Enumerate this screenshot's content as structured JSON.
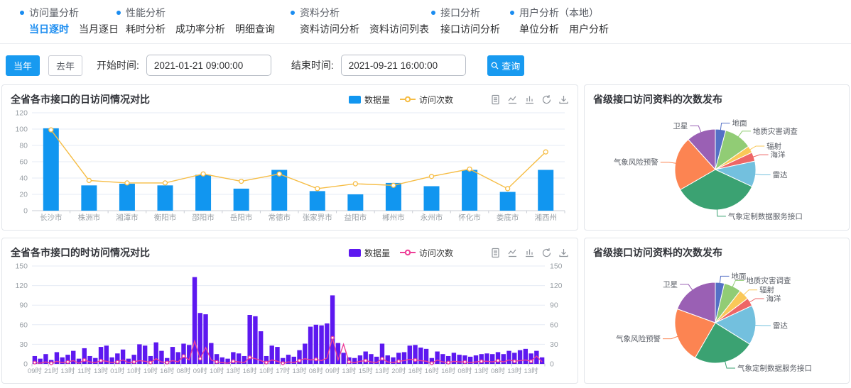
{
  "nav": {
    "bullet_color": "#1a8cf0",
    "active_color": "#1a8cf0",
    "groups": [
      {
        "title": "访问量分析",
        "items": [
          {
            "label": "当日逐时",
            "active": true
          },
          {
            "label": "当月逐日",
            "active": false
          }
        ]
      },
      {
        "title": "性能分析",
        "items": [
          {
            "label": "耗时分析",
            "active": false
          },
          {
            "label": "成功率分析",
            "active": false
          },
          {
            "label": "明细查询",
            "active": false
          }
        ]
      },
      {
        "title": "资料分析",
        "items": [
          {
            "label": "资料访问分析",
            "active": false
          },
          {
            "label": "资料访问列表",
            "active": false
          }
        ]
      },
      {
        "title": "接口分析",
        "items": [
          {
            "label": "接口访问分析",
            "active": false
          }
        ]
      },
      {
        "title": "用户分析（本地）",
        "items": [
          {
            "label": "单位分析",
            "active": false
          },
          {
            "label": "用户分析",
            "active": false
          }
        ]
      }
    ]
  },
  "filters": {
    "this_year_label": "当年",
    "last_year_label": "去年",
    "start_label": "开始时间:",
    "start_value": "2021-01-21 09:00:00",
    "end_label": "结束时间:",
    "end_value": "2021-09-21 16:00:00",
    "query_label": "查询",
    "accent_color": "#189af0"
  },
  "toolbox_icons": [
    "data-view",
    "switch-to-line",
    "switch-to-bar",
    "restore",
    "save-as-image"
  ],
  "chart_data": [
    {
      "id": "daily",
      "type": "bar",
      "title": "全省各市接口的日访问情况对比",
      "legend": [
        {
          "label": "数据量",
          "kind": "bar",
          "color": "#1196f0"
        },
        {
          "label": "访问次数",
          "kind": "line",
          "color": "#f6bd45"
        }
      ],
      "categories": [
        "长沙市",
        "株洲市",
        "湘潭市",
        "衡阳市",
        "邵阳市",
        "岳阳市",
        "常德市",
        "张家界市",
        "益阳市",
        "郴州市",
        "永州市",
        "怀化市",
        "娄底市",
        "湘西州"
      ],
      "series": [
        {
          "name": "数据量",
          "type": "bar",
          "color": "#1196f0",
          "values": [
            101,
            31,
            33,
            31,
            44,
            27,
            50,
            24,
            20,
            34,
            30,
            50,
            23,
            50
          ]
        },
        {
          "name": "访问次数",
          "type": "line",
          "color": "#f6bd45",
          "values": [
            99,
            37,
            34,
            34,
            45,
            36,
            45,
            27,
            33,
            31,
            42,
            51,
            27,
            72
          ]
        }
      ],
      "xlabel": "",
      "ylabel": "",
      "ylim": [
        0,
        120
      ],
      "yticks": [
        0,
        20,
        40,
        60,
        80,
        100,
        120
      ],
      "grid": true,
      "legend_position": "top-right"
    },
    {
      "id": "hourly",
      "type": "bar",
      "title": "全省各市接口的时访问情况对比",
      "legend": [
        {
          "label": "数据量",
          "kind": "bar",
          "color": "#5d18f0"
        },
        {
          "label": "访问次数",
          "kind": "line",
          "color": "#ee3f98"
        }
      ],
      "x_labels": [
        "09时",
        "21时",
        "13时",
        "11时",
        "13时",
        "01时",
        "10时",
        "19时",
        "16时",
        "08时",
        "09时",
        "10时",
        "13时",
        "16时",
        "10时",
        "17时",
        "13时",
        "08时",
        "09时",
        "13时",
        "15时",
        "13时",
        "20时",
        "16时",
        "16时",
        "16时",
        "08时",
        "13时",
        "08时",
        "13时",
        "13时"
      ],
      "label_every": 3,
      "series": [
        {
          "name": "数据量",
          "type": "bar",
          "color": "#5d18f0",
          "values": [
            12,
            8,
            15,
            6,
            18,
            10,
            14,
            20,
            8,
            24,
            12,
            9,
            26,
            28,
            10,
            16,
            22,
            8,
            14,
            30,
            28,
            12,
            33,
            20,
            9,
            26,
            18,
            31,
            29,
            133,
            78,
            76,
            32,
            15,
            10,
            8,
            18,
            16,
            12,
            75,
            73,
            50,
            12,
            28,
            26,
            9,
            14,
            11,
            21,
            31,
            57,
            60,
            59,
            62,
            105,
            32,
            17,
            10,
            9,
            13,
            19,
            15,
            11,
            31,
            13,
            10,
            17,
            18,
            28,
            29,
            25,
            23,
            9,
            19,
            15,
            12,
            17,
            14,
            13,
            11,
            13,
            15,
            16,
            15,
            18,
            15,
            20,
            17,
            21,
            23,
            16,
            20,
            10
          ]
        },
        {
          "name": "访问次数",
          "type": "line",
          "color": "#ee3f98",
          "values": [
            2,
            1,
            3,
            1,
            4,
            2,
            3,
            5,
            1,
            6,
            3,
            2,
            5,
            4,
            2,
            3,
            6,
            2,
            3,
            5,
            4,
            2,
            8,
            3,
            2,
            5,
            3,
            12,
            6,
            35,
            8,
            25,
            6,
            3,
            2,
            1,
            4,
            3,
            2,
            10,
            8,
            5,
            2,
            6,
            4,
            1,
            3,
            2,
            5,
            8,
            6,
            7,
            5,
            9,
            40,
            6,
            30,
            3,
            2,
            4,
            5,
            3,
            2,
            8,
            3,
            2,
            4,
            5,
            7,
            6,
            5,
            4,
            1,
            6,
            3,
            2,
            4,
            3,
            3,
            2,
            3,
            4,
            4,
            3,
            5,
            3,
            6,
            4,
            5,
            6,
            4,
            12,
            3
          ]
        }
      ],
      "xlabel": "",
      "ylabel": "",
      "ylim": [
        0,
        150
      ],
      "yticks": [
        0,
        30,
        60,
        90,
        120,
        150
      ],
      "grid": true,
      "right_axis": true,
      "legend_position": "top-right"
    },
    {
      "id": "pie-top",
      "type": "pie",
      "title": "省级接口访问资料的次数发布",
      "slices": [
        {
          "name": "地面",
          "value": 15,
          "color": "#5470c6"
        },
        {
          "name": "地质灾害调查",
          "value": 40,
          "color": "#91cc75"
        },
        {
          "name": "辐射",
          "value": 10,
          "color": "#fac858"
        },
        {
          "name": "海洋",
          "value": 13,
          "color": "#ee6666"
        },
        {
          "name": "雷达",
          "value": 37,
          "color": "#73c0de"
        },
        {
          "name": "气象定制数据服务接口",
          "value": 125,
          "color": "#3ba272"
        },
        {
          "name": "气象风险预警",
          "value": 78,
          "color": "#fc8452"
        },
        {
          "name": "卫星",
          "value": 42,
          "color": "#9a60b4"
        }
      ],
      "legend_position": "none"
    },
    {
      "id": "pie-bottom",
      "type": "pie",
      "title": "省级接口访问资料的次数发布",
      "slices": [
        {
          "name": "地面",
          "value": 13,
          "color": "#5470c6"
        },
        {
          "name": "地质灾害调查",
          "value": 25,
          "color": "#91cc75"
        },
        {
          "name": "辐射",
          "value": 15,
          "color": "#fac858"
        },
        {
          "name": "海洋",
          "value": 12,
          "color": "#ee6666"
        },
        {
          "name": "雷达",
          "value": 57,
          "color": "#73c0de"
        },
        {
          "name": "气象定制数据服务接口",
          "value": 88,
          "color": "#3ba272"
        },
        {
          "name": "气象风险预警",
          "value": 80,
          "color": "#fc8452"
        },
        {
          "name": "卫星",
          "value": 70,
          "color": "#9a60b4"
        }
      ],
      "legend_position": "none"
    }
  ]
}
